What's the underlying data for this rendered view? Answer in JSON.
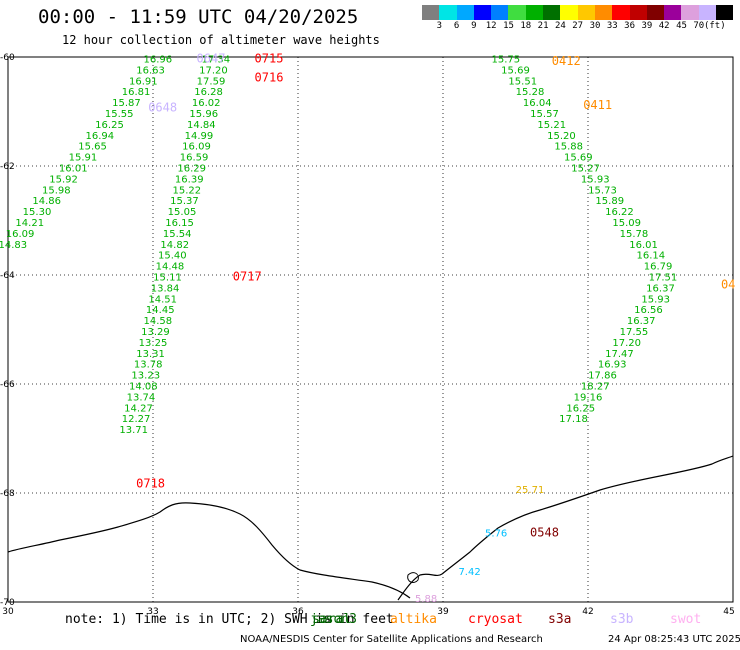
{
  "header": {
    "title": "00:00 - 11:59 UTC 04/20/2025",
    "subtitle": "12 hour collection of altimeter wave heights"
  },
  "colorbar": {
    "unit": "(ft)",
    "colors": [
      "#7f7f7f",
      "#00e5e5",
      "#00a8ff",
      "#0000ff",
      "#007fff",
      "#40dd40",
      "#00b000",
      "#007000",
      "#ffff00",
      "#ffc800",
      "#ff8c00",
      "#ff0000",
      "#c00000",
      "#800000",
      "#9b009b",
      "#dda0dd",
      "#c8b4ff",
      "#000000"
    ],
    "labels": [
      "3",
      "6",
      "9",
      "12",
      "15",
      "18",
      "21",
      "24",
      "27",
      "30",
      "33",
      "36",
      "39",
      "42",
      "45",
      "70"
    ]
  },
  "axes": {
    "lon_ticks": [
      "30",
      "33",
      "36",
      "39",
      "42",
      "45"
    ],
    "lat_ticks": [
      "-60",
      "-62",
      "-64",
      "-66",
      "-68",
      "-70"
    ]
  },
  "passes": [
    {
      "id": "0715",
      "color": "#ff0000",
      "lon": 35.4,
      "lat": -60.1
    },
    {
      "id": "0716",
      "color": "#ff0000",
      "lon": 35.4,
      "lat": -60.45
    },
    {
      "id": "0647",
      "color": "#c8b4ff",
      "lon": 34.2,
      "lat": -60.1
    },
    {
      "id": "0648",
      "color": "#c8b4ff",
      "lon": 33.2,
      "lat": -61.0
    },
    {
      "id": "0717",
      "color": "#ff0000",
      "lon": 34.95,
      "lat": -64.1
    },
    {
      "id": "0718",
      "color": "#ff0000",
      "lon": 32.95,
      "lat": -67.9
    },
    {
      "id": "0412",
      "color": "#ff8c00",
      "lon": 41.55,
      "lat": -60.15
    },
    {
      "id": "0411",
      "color": "#ff8c00",
      "lon": 42.2,
      "lat": -60.95
    },
    {
      "id": "0548",
      "color": "#800000",
      "lon": 41.1,
      "lat": -68.8
    },
    {
      "id": "04",
      "color": "#ff8c00",
      "lon": 44.9,
      "lat": -64.25
    }
  ],
  "tracks": [
    {
      "name": "track-west-outer",
      "color": "#00b000",
      "points": [
        {
          "v": "16.96",
          "lon": 33.1,
          "lat": -60.1
        },
        {
          "v": "16.63",
          "lon": 32.95,
          "lat": -60.3
        },
        {
          "v": "16.91",
          "lon": 32.8,
          "lat": -60.5
        },
        {
          "v": "16.81",
          "lon": 32.65,
          "lat": -60.7
        },
        {
          "v": "15.87",
          "lon": 32.45,
          "lat": -60.9
        },
        {
          "v": "15.55",
          "lon": 32.3,
          "lat": -61.1
        },
        {
          "v": "16.25",
          "lon": 32.1,
          "lat": -61.3
        },
        {
          "v": "16.94",
          "lon": 31.9,
          "lat": -61.5
        },
        {
          "v": "15.65",
          "lon": 31.75,
          "lat": -61.7
        },
        {
          "v": "15.91",
          "lon": 31.55,
          "lat": -61.9
        },
        {
          "v": "16.01",
          "lon": 31.35,
          "lat": -62.1
        },
        {
          "v": "15.92",
          "lon": 31.15,
          "lat": -62.3
        },
        {
          "v": "15.98",
          "lon": 31.0,
          "lat": -62.5
        },
        {
          "v": "14.86",
          "lon": 30.8,
          "lat": -62.7
        },
        {
          "v": "15.30",
          "lon": 30.6,
          "lat": -62.9
        },
        {
          "v": "14.21",
          "lon": 30.45,
          "lat": -63.1
        },
        {
          "v": "16.09",
          "lon": 30.25,
          "lat": -63.3
        },
        {
          "v": "14.83",
          "lon": 30.1,
          "lat": -63.5
        }
      ]
    },
    {
      "name": "track-west-inner",
      "color": "#00b000",
      "points": [
        {
          "v": "17.34",
          "lon": 34.3,
          "lat": -60.1
        },
        {
          "v": "17.20",
          "lon": 34.25,
          "lat": -60.3
        },
        {
          "v": "17.59",
          "lon": 34.2,
          "lat": -60.5
        },
        {
          "v": "16.28",
          "lon": 34.15,
          "lat": -60.7
        },
        {
          "v": "16.02",
          "lon": 34.1,
          "lat": -60.9
        },
        {
          "v": "15.96",
          "lon": 34.05,
          "lat": -61.1
        },
        {
          "v": "14.84",
          "lon": 34.0,
          "lat": -61.3
        },
        {
          "v": "14.99",
          "lon": 33.95,
          "lat": -61.5
        },
        {
          "v": "16.09",
          "lon": 33.9,
          "lat": -61.7
        },
        {
          "v": "16.59",
          "lon": 33.85,
          "lat": -61.9
        },
        {
          "v": "16.29",
          "lon": 33.8,
          "lat": -62.1
        },
        {
          "v": "16.39",
          "lon": 33.75,
          "lat": -62.3
        },
        {
          "v": "15.22",
          "lon": 33.7,
          "lat": -62.5
        },
        {
          "v": "15.37",
          "lon": 33.65,
          "lat": -62.7
        },
        {
          "v": "15.05",
          "lon": 33.6,
          "lat": -62.9
        },
        {
          "v": "16.15",
          "lon": 33.55,
          "lat": -63.1
        },
        {
          "v": "15.54",
          "lon": 33.5,
          "lat": -63.3
        },
        {
          "v": "14.82",
          "lon": 33.45,
          "lat": -63.5
        },
        {
          "v": "15.40",
          "lon": 33.4,
          "lat": -63.7
        },
        {
          "v": "14.48",
          "lon": 33.35,
          "lat": -63.9
        },
        {
          "v": "15.11",
          "lon": 33.3,
          "lat": -64.1
        },
        {
          "v": "13.84",
          "lon": 33.25,
          "lat": -64.3
        },
        {
          "v": "14.51",
          "lon": 33.2,
          "lat": -64.5
        },
        {
          "v": "14.45",
          "lon": 33.15,
          "lat": -64.7
        },
        {
          "v": "14.58",
          "lon": 33.1,
          "lat": -64.9
        },
        {
          "v": "13.29",
          "lon": 33.05,
          "lat": -65.1
        },
        {
          "v": "13.25",
          "lon": 33.0,
          "lat": -65.3
        },
        {
          "v": "13.31",
          "lon": 32.95,
          "lat": -65.5
        },
        {
          "v": "13.78",
          "lon": 32.9,
          "lat": -65.7
        },
        {
          "v": "13.23",
          "lon": 32.85,
          "lat": -65.9
        },
        {
          "v": "14.08",
          "lon": 32.8,
          "lat": -66.1
        },
        {
          "v": "13.74",
          "lon": 32.75,
          "lat": -66.3
        },
        {
          "v": "14.27",
          "lon": 32.7,
          "lat": -66.5
        },
        {
          "v": "12.27",
          "lon": 32.65,
          "lat": -66.7
        },
        {
          "v": "13.71",
          "lon": 32.6,
          "lat": -66.9
        }
      ]
    },
    {
      "name": "track-east",
      "color": "#00b000",
      "points": [
        {
          "v": "15.75",
          "lon": 40.3,
          "lat": -60.1
        },
        {
          "v": "15.69",
          "lon": 40.5,
          "lat": -60.3
        },
        {
          "v": "15.51",
          "lon": 40.65,
          "lat": -60.5
        },
        {
          "v": "15.28",
          "lon": 40.8,
          "lat": -60.7
        },
        {
          "v": "16.04",
          "lon": 40.95,
          "lat": -60.9
        },
        {
          "v": "15.57",
          "lon": 41.1,
          "lat": -61.1
        },
        {
          "v": "15.21",
          "lon": 41.25,
          "lat": -61.3
        },
        {
          "v": "15.20",
          "lon": 41.45,
          "lat": -61.5
        },
        {
          "v": "15.88",
          "lon": 41.6,
          "lat": -61.7
        },
        {
          "v": "15.69",
          "lon": 41.8,
          "lat": -61.9
        },
        {
          "v": "15.27",
          "lon": 41.95,
          "lat": -62.1
        },
        {
          "v": "15.93",
          "lon": 42.15,
          "lat": -62.3
        },
        {
          "v": "15.73",
          "lon": 42.3,
          "lat": -62.5
        },
        {
          "v": "15.89",
          "lon": 42.45,
          "lat": -62.7
        },
        {
          "v": "16.22",
          "lon": 42.65,
          "lat": -62.9
        },
        {
          "v": "15.09",
          "lon": 42.8,
          "lat": -63.1
        },
        {
          "v": "15.78",
          "lon": 42.95,
          "lat": -63.3
        },
        {
          "v": "16.01",
          "lon": 43.15,
          "lat": -63.5
        },
        {
          "v": "16.14",
          "lon": 43.3,
          "lat": -63.7
        },
        {
          "v": "16.79",
          "lon": 43.45,
          "lat": -63.9
        },
        {
          "v": "17.51",
          "lon": 43.55,
          "lat": -64.1
        },
        {
          "v": "16.37",
          "lon": 43.5,
          "lat": -64.3
        },
        {
          "v": "15.93",
          "lon": 43.4,
          "lat": -64.5
        },
        {
          "v": "16.56",
          "lon": 43.25,
          "lat": -64.7
        },
        {
          "v": "16.37",
          "lon": 43.1,
          "lat": -64.9
        },
        {
          "v": "17.55",
          "lon": 42.95,
          "lat": -65.1
        },
        {
          "v": "17.20",
          "lon": 42.8,
          "lat": -65.3
        },
        {
          "v": "17.47",
          "lon": 42.65,
          "lat": -65.5
        },
        {
          "v": "16.93",
          "lon": 42.5,
          "lat": -65.7
        },
        {
          "v": "17.86",
          "lon": 42.3,
          "lat": -65.9
        },
        {
          "v": "18.27",
          "lon": 42.15,
          "lat": -66.1
        },
        {
          "v": "19.16",
          "lon": 42.0,
          "lat": -66.3
        },
        {
          "v": "16.25",
          "lon": 41.85,
          "lat": -66.5
        },
        {
          "v": "17.18",
          "lon": 41.7,
          "lat": -66.7
        }
      ]
    }
  ],
  "extra_values": [
    {
      "v": "25.71",
      "color": "#e0b000",
      "lon": 40.8,
      "lat": -68.0
    },
    {
      "v": "5.76",
      "color": "#00bfff",
      "lon": 40.1,
      "lat": -68.8
    },
    {
      "v": "7.42",
      "color": "#00bfff",
      "lon": 39.55,
      "lat": -69.5
    },
    {
      "v": "5.88",
      "color": "#dda0dd",
      "lon": 38.65,
      "lat": -70.0
    }
  ],
  "legend": [
    {
      "label": "jason3",
      "color": "#006400"
    },
    {
      "label": "saral",
      "color": "#006400"
    },
    {
      "label": "altika",
      "color": "#ff8c00"
    },
    {
      "label": "cryosat",
      "color": "#ff0000"
    },
    {
      "label": "s3a",
      "color": "#800000"
    },
    {
      "label": "s3b",
      "color": "#c8b4ff"
    },
    {
      "label": "swot",
      "color": "#ffb0f0"
    }
  ],
  "footer": {
    "note": "note: 1) Time is in UTC; 2) SWH is in feet",
    "credit": "NOAA/NESDIS Center for Satellite Applications and Research",
    "generated": "24 Apr 08:25:43 UTC 2025"
  }
}
